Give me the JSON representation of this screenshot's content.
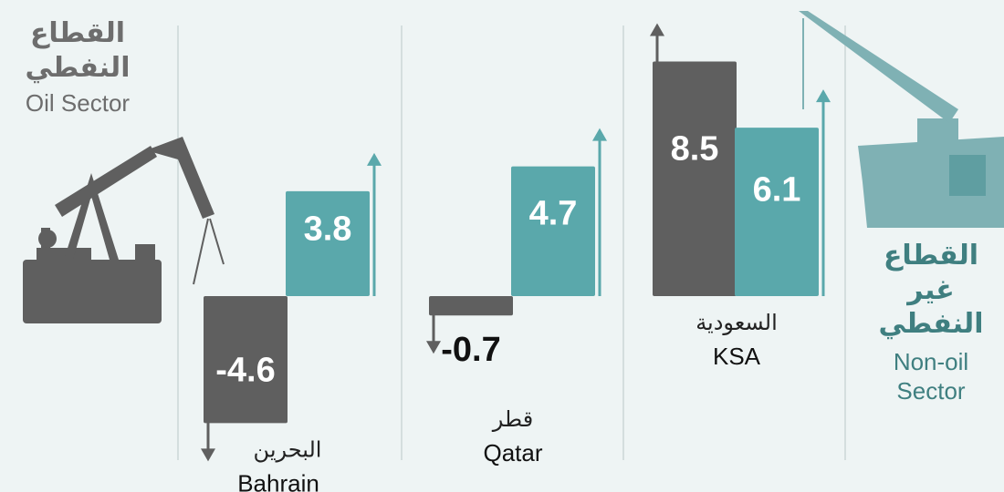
{
  "chart_data": {
    "type": "bar",
    "categories": [
      "Bahrain",
      "Qatar",
      "KSA"
    ],
    "categories_ar": [
      "البحرين",
      "قطر",
      "السعودية"
    ],
    "series": [
      {
        "name": "Oil Sector",
        "name_ar": "القطاع النفطي",
        "color": "#5f5f5f",
        "values": [
          -4.6,
          -0.7,
          8.5
        ]
      },
      {
        "name": "Non-oil Sector",
        "name_ar": "القطاع غير النفطي",
        "color": "#5aa8ab",
        "values": [
          3.8,
          4.7,
          6.1
        ]
      }
    ]
  }
}
